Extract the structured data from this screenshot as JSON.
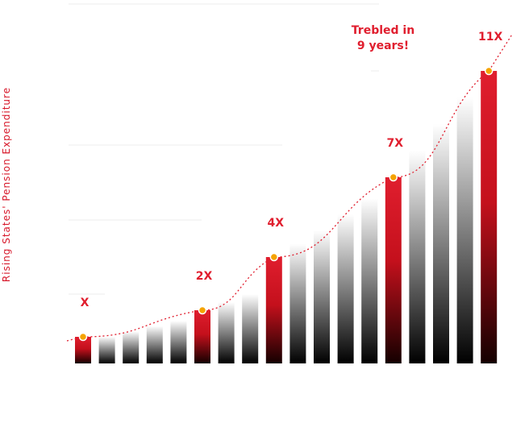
{
  "chart_data": {
    "type": "bar",
    "title": "",
    "xlabel": "",
    "ylabel": "Rising States' Pension Expenditure",
    "values": [
      1,
      1,
      1.2,
      1.4,
      1.6,
      2,
      2.3,
      2.6,
      4,
      4.5,
      5,
      5.6,
      6.2,
      7,
      8,
      9,
      10,
      11
    ],
    "highlighted_indices": [
      0,
      5,
      8,
      13,
      17
    ],
    "data_labels": [
      {
        "index": 0,
        "text": "X"
      },
      {
        "index": 5,
        "text": "2X"
      },
      {
        "index": 8,
        "text": "4X"
      },
      {
        "index": 13,
        "text": "7X"
      },
      {
        "index": 17,
        "text": "11X"
      }
    ],
    "annotation": {
      "lines": [
        "Trebled in",
        "9 years!"
      ],
      "near_index": 13
    },
    "trend_line": "dotted",
    "ylim": [
      0,
      11
    ],
    "grid": true
  },
  "colors": {
    "highlight_top": "#e01e2e",
    "highlight_bottom": "#1a0000",
    "gray_top": "#ffffff",
    "gray_bottom": "#000000",
    "trend": "#e01e2e",
    "marker": "#f5a300",
    "text": "#e01e2e"
  }
}
